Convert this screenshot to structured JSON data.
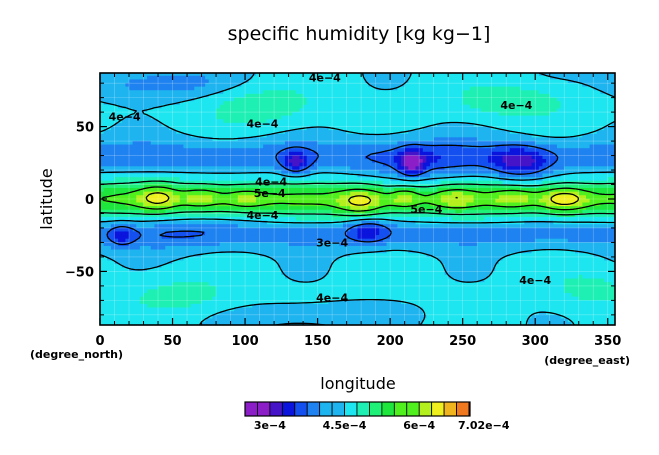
{
  "chart_data": {
    "type": "heatmap",
    "title": "specific humidity [kg kg−1]",
    "xlabel": "longitude",
    "ylabel": "latitude",
    "x_unit_label": "(degree_east)",
    "y_unit_label": "(degree_north)",
    "xlim": [
      0,
      355
    ],
    "ylim": [
      -87,
      87
    ],
    "x_ticks": [
      0,
      50,
      100,
      150,
      200,
      250,
      300,
      350
    ],
    "x_tick_labels": [
      "0",
      "50",
      "100",
      "150",
      "200",
      "250",
      "300",
      "350"
    ],
    "y_ticks": [
      -50,
      0,
      50
    ],
    "y_tick_labels": [
      "−50",
      "0",
      "50"
    ],
    "grid": true,
    "levels": [
      0.00025,
      0.000275,
      0.0003,
      0.000325,
      0.00035,
      0.000375,
      0.0004,
      0.000425,
      0.00045,
      0.000475,
      0.0005,
      0.000525,
      0.00055,
      0.000575,
      0.0006,
      0.000625,
      0.00065,
      0.000675,
      0.0007,
      0.000702
    ],
    "colorbar": {
      "colors": [
        "#8c1ec8",
        "#4614c8",
        "#0a14dc",
        "#1450f0",
        "#1e82f0",
        "#1eb4f0",
        "#1ee6f0",
        "#1ef0b4",
        "#1ef078",
        "#1ee63c",
        "#50f01e",
        "#b4f01e",
        "#f0f01e",
        "#f0b41e",
        "#f0781e",
        "#f0281e"
      ],
      "tick_labels": [
        "3e−4",
        "4.5e−4",
        "6e−4",
        "7.02e−4"
      ],
      "tick_values": [
        0.0003,
        0.00045,
        0.0006,
        0.000702
      ]
    },
    "contour_labels": [
      {
        "text": "4e−4",
        "lon": 155,
        "lat": 84
      },
      {
        "text": "4e−4",
        "lon": 17,
        "lat": 57
      },
      {
        "text": "4e−4",
        "lon": 112,
        "lat": 52
      },
      {
        "text": "4e−4",
        "lon": 287,
        "lat": 65
      },
      {
        "text": "4e−4",
        "lon": 118,
        "lat": 12
      },
      {
        "text": "5e−4",
        "lon": 117,
        "lat": 4
      },
      {
        "text": "4e−4",
        "lon": 112,
        "lat": -11
      },
      {
        "text": "5e−4",
        "lon": 225,
        "lat": -7
      },
      {
        "text": "3e−4",
        "lon": 160,
        "lat": -30
      },
      {
        "text": "4e−4",
        "lon": 300,
        "lat": -56
      },
      {
        "text": "4e−4",
        "lon": 160,
        "lat": -68
      }
    ],
    "features": [
      {
        "lon": 40,
        "lat": 1,
        "sx": 9,
        "sy": 6,
        "amp": 2.6
      },
      {
        "lon": 70,
        "lat": 1,
        "sx": 9,
        "sy": 5,
        "amp": 1.9
      },
      {
        "lon": 100,
        "lat": 0,
        "sx": 10,
        "sy": 5,
        "amp": 1.6
      },
      {
        "lon": 180,
        "lat": -2,
        "sx": 11,
        "sy": 7,
        "amp": 2.9
      },
      {
        "lon": 210,
        "lat": 1,
        "sx": 7,
        "sy": 5,
        "amp": 2.0
      },
      {
        "lon": 245,
        "lat": 1,
        "sx": 10,
        "sy": 5,
        "amp": 1.9
      },
      {
        "lon": 285,
        "lat": 1,
        "sx": 10,
        "sy": 5,
        "amp": 1.8
      },
      {
        "lon": 320,
        "lat": 0,
        "sx": 11,
        "sy": 6,
        "amp": 3.3
      },
      {
        "lon": 290,
        "lat": 25,
        "sx": 14,
        "sy": 8,
        "amp": -3.4
      },
      {
        "lon": 215,
        "lat": 25,
        "sx": 6,
        "sy": 6,
        "amp": -4.0
      },
      {
        "lon": 135,
        "lat": 25,
        "sx": 7,
        "sy": 6,
        "amp": -3.0
      },
      {
        "lon": 185,
        "lat": -22,
        "sx": 10,
        "sy": 6,
        "amp": -2.6
      },
      {
        "lon": 15,
        "lat": -25,
        "sx": 6,
        "sy": 5,
        "amp": -2.2
      },
      {
        "lon": 225,
        "lat": 25,
        "sx": 30,
        "sy": 12,
        "amp": -1.5
      },
      {
        "lon": 60,
        "lat": -22,
        "sx": 28,
        "sy": 10,
        "amp": -0.8
      },
      {
        "lon": 110,
        "lat": 65,
        "sx": 28,
        "sy": 10,
        "amp": 1.5
      },
      {
        "lon": 285,
        "lat": 68,
        "sx": 30,
        "sy": 9,
        "amp": 1.5
      },
      {
        "lon": 55,
        "lat": -66,
        "sx": 25,
        "sy": 9,
        "amp": 1.3
      },
      {
        "lon": 340,
        "lat": -62,
        "sx": 20,
        "sy": 9,
        "amp": 1.2
      },
      {
        "lon": 40,
        "lat": 80,
        "sx": 35,
        "sy": 8,
        "amp": -1.8
      },
      {
        "lon": 150,
        "lat": -80,
        "sx": 40,
        "sy": 6,
        "amp": -0.9
      }
    ]
  }
}
